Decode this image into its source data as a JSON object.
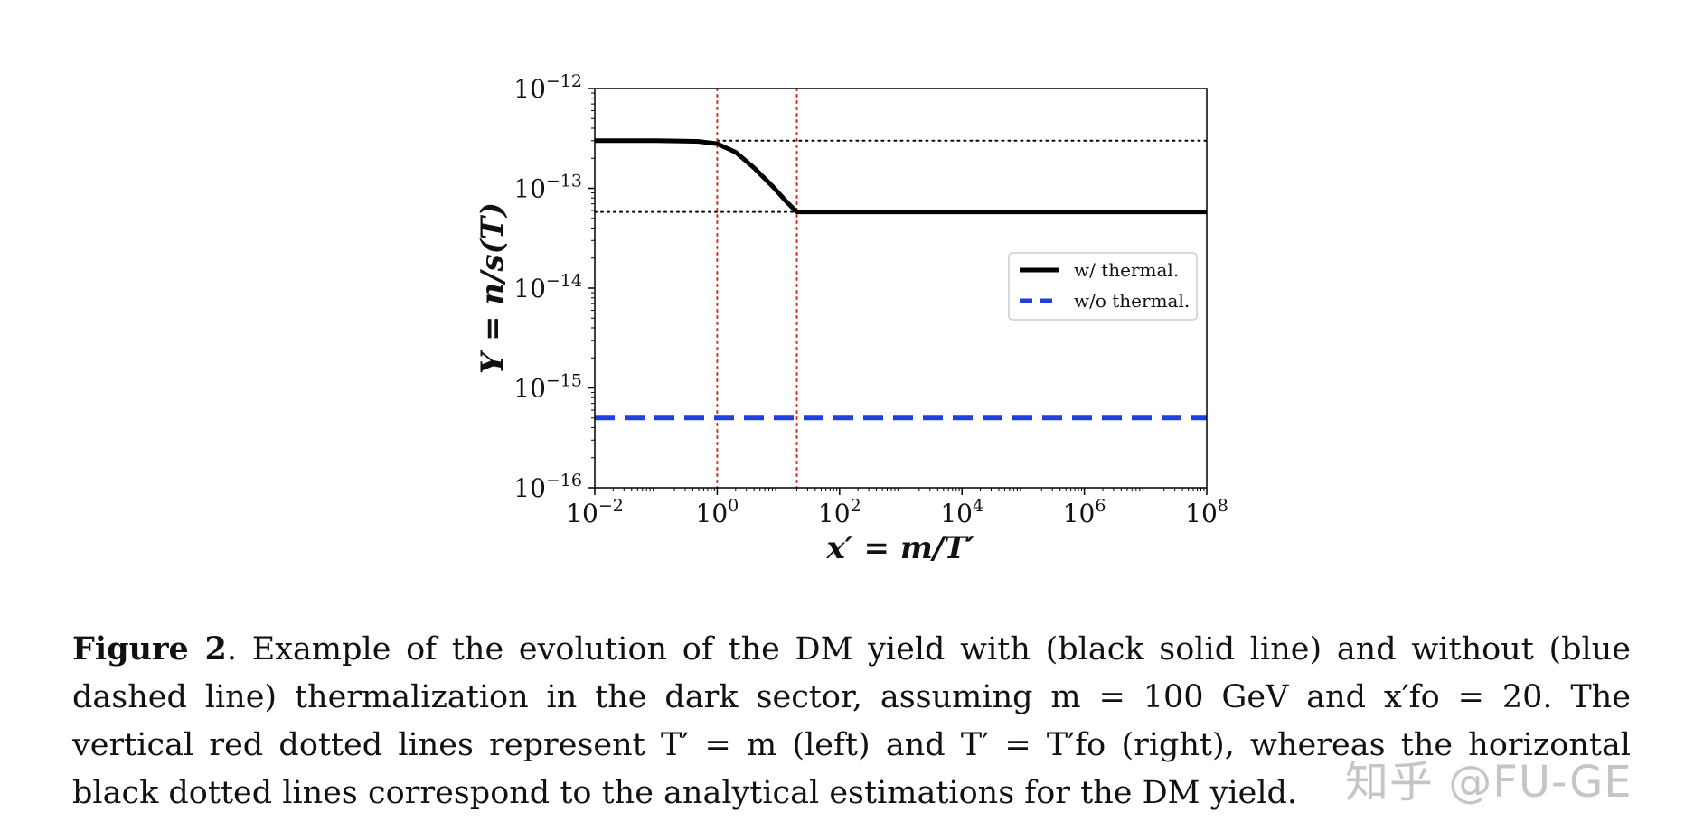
{
  "figure": {
    "xlabel": "x′ = m/T′",
    "ylabel": "Y = n/s(T)",
    "legend": [
      {
        "label": "w/ thermal.",
        "color": "#000000",
        "style": "solid"
      },
      {
        "label": "w/o thermal.",
        "color": "#1f3fe0",
        "style": "dashed"
      }
    ]
  },
  "chart_data": {
    "type": "line",
    "xscale": "log",
    "yscale": "log",
    "xlim": [
      0.01,
      100000000
    ],
    "ylim": [
      1e-16,
      1e-12
    ],
    "xticks": [
      {
        "base": "10",
        "exp": "−2",
        "value": 0.01
      },
      {
        "base": "10",
        "exp": "0",
        "value": 1
      },
      {
        "base": "10",
        "exp": "2",
        "value": 100
      },
      {
        "base": "10",
        "exp": "4",
        "value": 10000
      },
      {
        "base": "10",
        "exp": "6",
        "value": 1000000
      },
      {
        "base": "10",
        "exp": "8",
        "value": 100000000
      }
    ],
    "yticks": [
      {
        "base": "10",
        "exp": "−12",
        "value": 1e-12
      },
      {
        "base": "10",
        "exp": "−13",
        "value": 1e-13
      },
      {
        "base": "10",
        "exp": "−14",
        "value": 1e-14
      },
      {
        "base": "10",
        "exp": "−15",
        "value": 1e-15
      },
      {
        "base": "10",
        "exp": "−16",
        "value": 1e-16
      }
    ],
    "series": [
      {
        "name": "w/ thermal.",
        "color": "#000000",
        "style": "solid",
        "x": [
          0.01,
          0.1,
          0.5,
          1,
          2,
          4,
          8,
          14,
          20,
          100,
          10000,
          1000000,
          100000000
        ],
        "y": [
          3e-13,
          3e-13,
          2.95e-13,
          2.8e-13,
          2.3e-13,
          1.6e-13,
          1.05e-13,
          7.2e-14,
          5.8e-14,
          5.8e-14,
          5.8e-14,
          5.8e-14,
          5.8e-14
        ]
      },
      {
        "name": "w/o thermal.",
        "color": "#1f3fe0",
        "style": "dashed",
        "x": [
          0.01,
          100000000
        ],
        "y": [
          5e-16,
          5e-16
        ]
      }
    ],
    "reference_lines": {
      "vertical_red_dotted": [
        1,
        20
      ],
      "horizontal_black_dotted": [
        {
          "y": 3e-13,
          "x_from": 1,
          "x_to": 100000000
        },
        {
          "y": 5.8e-14,
          "x_from": 0.01,
          "x_to": 20
        }
      ]
    },
    "legend_position": "center-right",
    "grid": false
  },
  "caption": {
    "label": "Figure 2",
    "text": ". Example of the evolution of the DM yield with (black solid line) and without (blue dashed line) thermalization in the dark sector, assuming m = 100 GeV and x′fo = 20. The vertical red dotted lines represent T′ = m (left) and T′ = T′fo (right), whereas the horizontal black dotted lines correspond to the analytical estimations for the DM yield."
  },
  "watermark": "知乎 @FU-GE"
}
